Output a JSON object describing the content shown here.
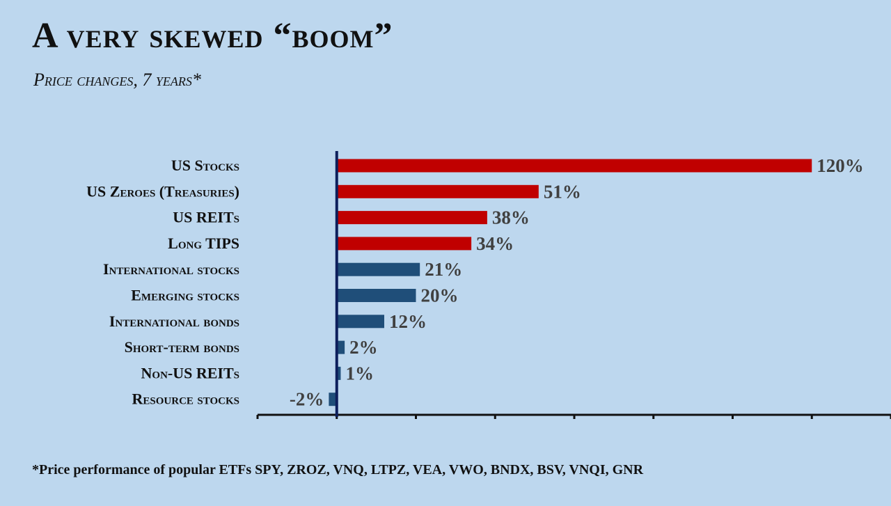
{
  "title": "A very skewed “boom”",
  "subtitle": "Price changes,  7 years*",
  "footnote": "*Price performance of popular ETFs SPY, ZROZ, VNQ, LTPZ, VEA, VWO, BNDX, BSV, VNQI, GNR",
  "colors": {
    "highlight": "#c00000",
    "normal": "#1f4e79",
    "axis": "#0d1f5c",
    "background": "#bdd7ee"
  },
  "chart_data": {
    "type": "bar",
    "orientation": "horizontal",
    "categories": [
      "US Stocks",
      "US Zeroes (Treasuries)",
      "US REITs",
      "Long TIPS",
      "International stocks",
      "Emerging stocks",
      "International bonds",
      "Short-term bonds",
      "Non-US REITs",
      "Resource stocks"
    ],
    "values": [
      120,
      51,
      38,
      34,
      21,
      20,
      12,
      2,
      1,
      -2
    ],
    "value_labels": [
      "120%",
      "51%",
      "38%",
      "34%",
      "21%",
      "20%",
      "12%",
      "2%",
      "1%",
      "-2%"
    ],
    "highlighted": [
      true,
      true,
      true,
      true,
      false,
      false,
      false,
      false,
      false,
      false
    ],
    "xlim": [
      -20,
      140
    ],
    "grid": false,
    "legend": "none"
  }
}
